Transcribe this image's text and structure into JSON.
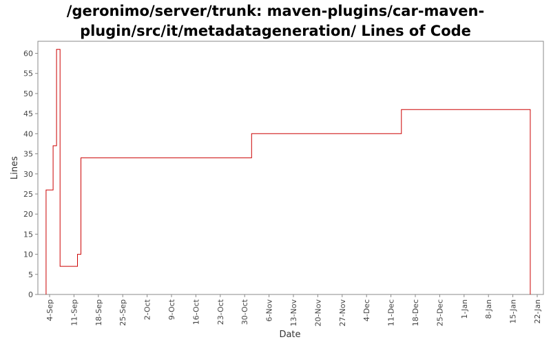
{
  "chart_data": {
    "type": "line",
    "title_lines": [
      "/geronimo/server/trunk: maven-plugins/car-maven-",
      "plugin/src/it/metadatageneration/ Lines of Code"
    ],
    "xlabel": "Date",
    "ylabel": "Lines",
    "ylim": [
      0,
      63
    ],
    "yticks": [
      0,
      5,
      10,
      15,
      20,
      25,
      30,
      35,
      40,
      45,
      50,
      55,
      60
    ],
    "xticks": [
      "4-Sep",
      "11-Sep",
      "18-Sep",
      "25-Sep",
      "2-Oct",
      "9-Oct",
      "16-Oct",
      "23-Oct",
      "30-Oct",
      "6-Nov",
      "13-Nov",
      "20-Nov",
      "27-Nov",
      "4-Dec",
      "11-Dec",
      "18-Dec",
      "25-Dec",
      "1-Jan",
      "8-Jan",
      "15-Jan",
      "22-Jan"
    ],
    "step": true,
    "grid": false,
    "series": [
      {
        "color": "#cc0000",
        "points": [
          {
            "x": "3-Sep",
            "y": 0
          },
          {
            "x": "3-Sep",
            "y": 26
          },
          {
            "x": "5-Sep",
            "y": 26
          },
          {
            "x": "5-Sep",
            "y": 37
          },
          {
            "x": "6-Sep",
            "y": 37
          },
          {
            "x": "6-Sep",
            "y": 61
          },
          {
            "x": "7-Sep",
            "y": 61
          },
          {
            "x": "7-Sep",
            "y": 7
          },
          {
            "x": "12-Sep",
            "y": 7
          },
          {
            "x": "12-Sep",
            "y": 10
          },
          {
            "x": "13-Sep",
            "y": 10
          },
          {
            "x": "13-Sep",
            "y": 34
          },
          {
            "x": "1-Nov",
            "y": 34
          },
          {
            "x": "1-Nov",
            "y": 40
          },
          {
            "x": "14-Dec",
            "y": 40
          },
          {
            "x": "14-Dec",
            "y": 46
          },
          {
            "x": "20-Jan",
            "y": 46
          },
          {
            "x": "20-Jan",
            "y": 0
          }
        ]
      }
    ]
  }
}
